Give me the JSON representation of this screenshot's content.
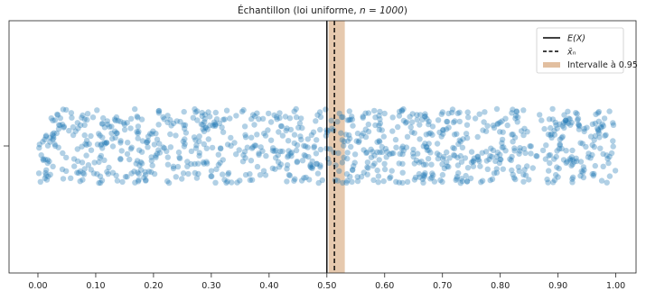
{
  "chart_data": {
    "type": "scatter",
    "title": "Échantillon (loi uniforme, n = 1000)",
    "title_text": "Échantillon (loi uniforme, ",
    "title_math": "n = 1000",
    "title_close": ")",
    "distribution": "uniform",
    "n": 1000,
    "xlim": [
      -0.05,
      1.035
    ],
    "x_ticks": [
      0.0,
      0.1,
      0.2,
      0.3,
      0.4,
      0.5,
      0.6,
      0.7,
      0.8,
      0.9,
      1.0
    ],
    "x_tick_labels": [
      "0.00",
      "0.10",
      "0.20",
      "0.30",
      "0.40",
      "0.50",
      "0.60",
      "0.70",
      "0.80",
      "0.90",
      "1.00"
    ],
    "x_range": [
      0.0,
      1.0
    ],
    "y_jitter_range": [
      -0.15,
      0.15
    ],
    "expected_value": 0.5,
    "sample_mean": 0.513,
    "confidence_interval": [
      0.503,
      0.531
    ],
    "confidence_level": 0.95,
    "legend": {
      "placement": "top-right",
      "entries": [
        {
          "label": "E(X)",
          "style": "solid-line"
        },
        {
          "label": "x̄ₙ",
          "style": "dashed-line"
        },
        {
          "label": "Intervalle à 0.95",
          "style": "band"
        }
      ]
    },
    "grid": false
  },
  "colors": {
    "points": "#1f77b4",
    "band": "#e2bfa0",
    "lines": "#000000",
    "axes": "#222222"
  }
}
